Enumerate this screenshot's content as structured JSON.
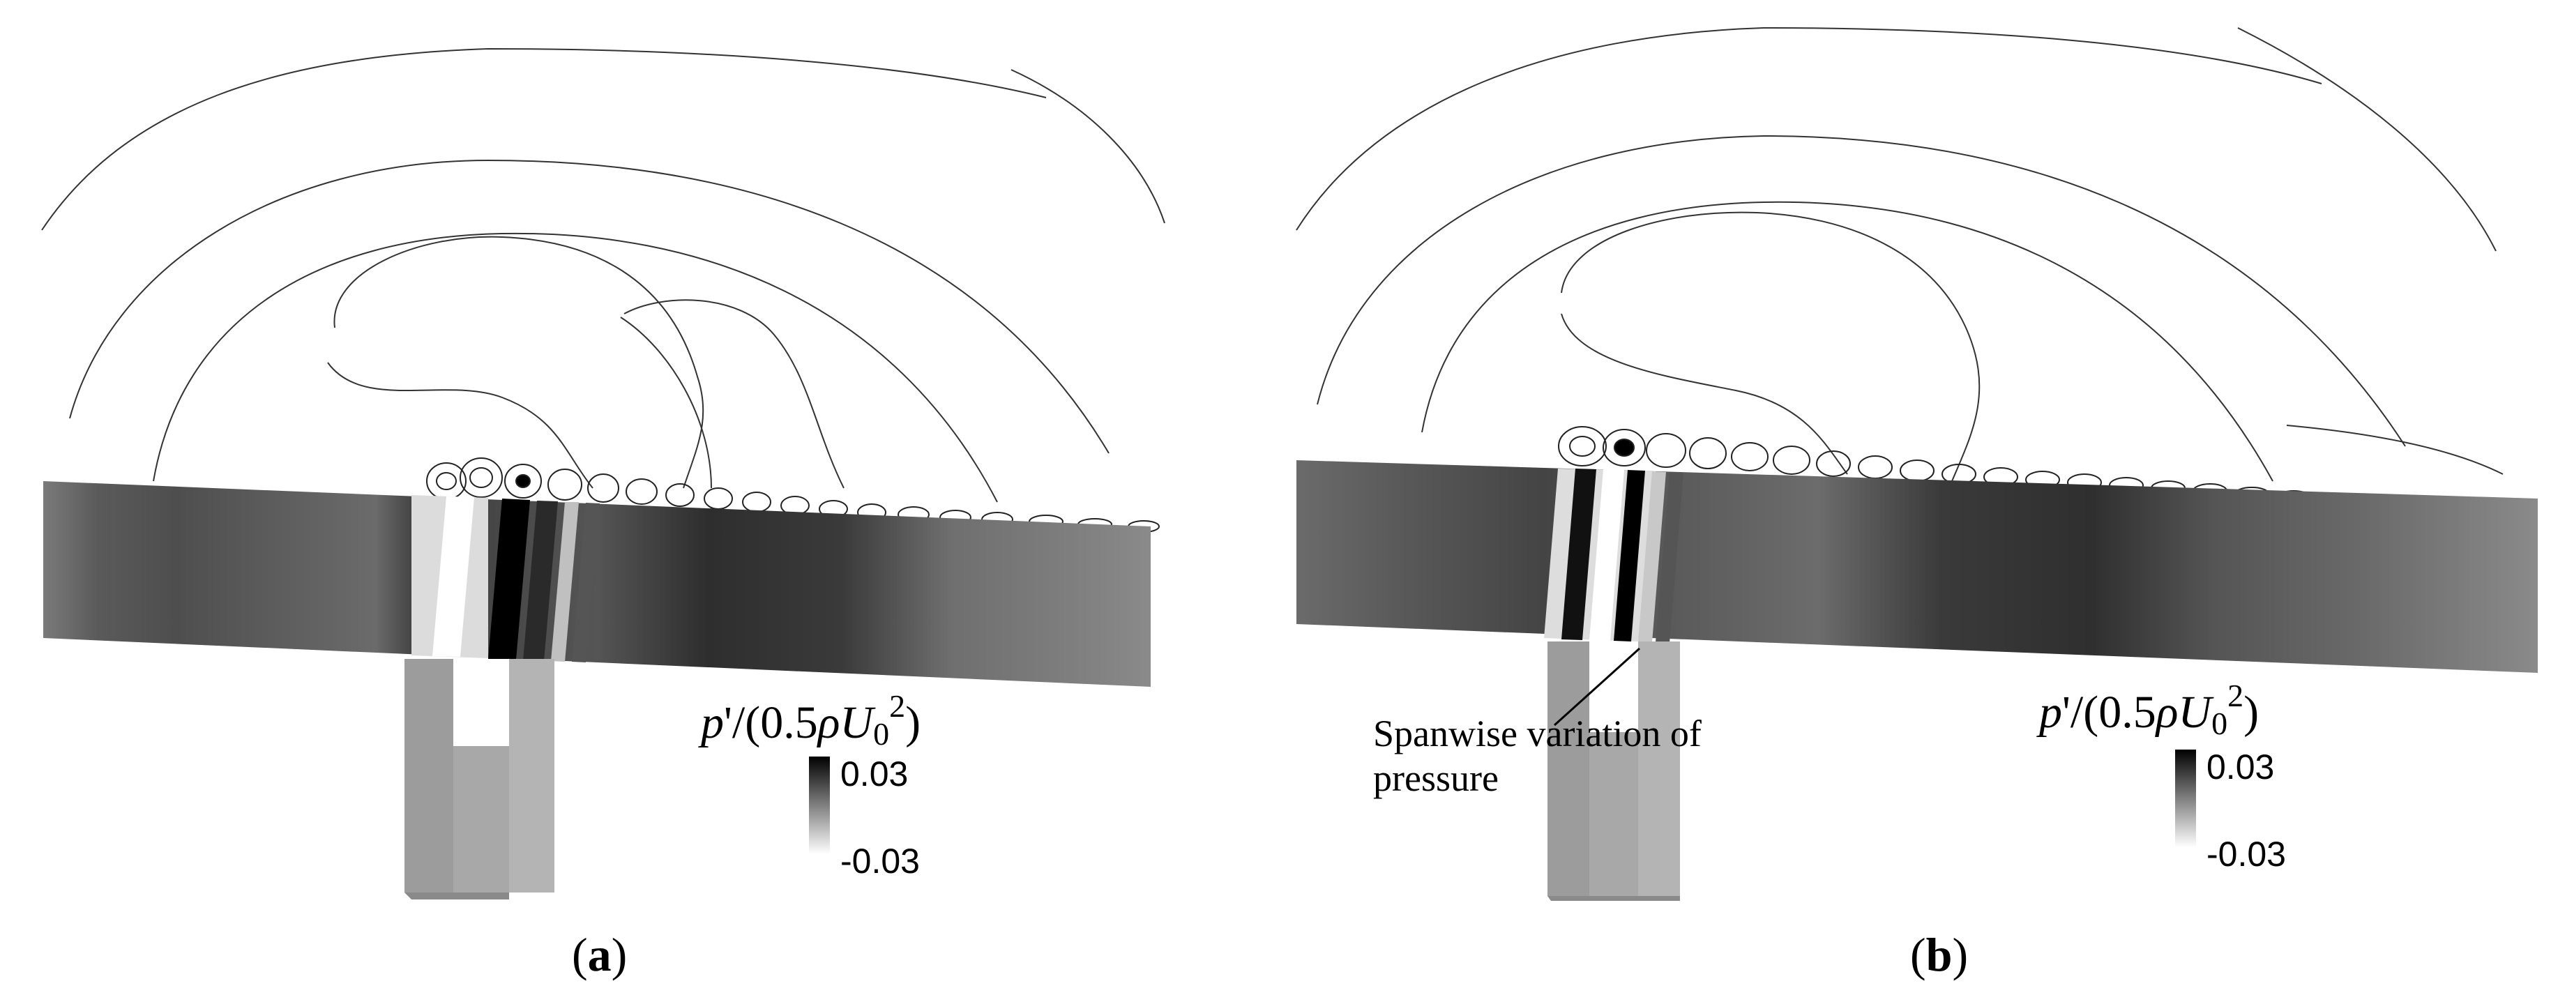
{
  "figure": {
    "panels": [
      {
        "id": "a",
        "label": "a",
        "colorbar": {
          "title_var": "p",
          "title_u": "U",
          "title_sub": "0",
          "title_sup": "2",
          "title_coef": "0.5",
          "title_rho": "ρ",
          "max": "0.03",
          "min": "-0.03"
        }
      },
      {
        "id": "b",
        "label": "b",
        "annotation": "Spanwise variation of pressure",
        "colorbar": {
          "title_var": "p",
          "title_u": "U",
          "title_sub": "0",
          "title_sup": "2",
          "title_coef": "0.5",
          "title_rho": "ρ",
          "max": "0.03",
          "min": "-0.03"
        }
      }
    ],
    "colormap": {
      "low": "#ffffff",
      "high": "#000000"
    }
  }
}
